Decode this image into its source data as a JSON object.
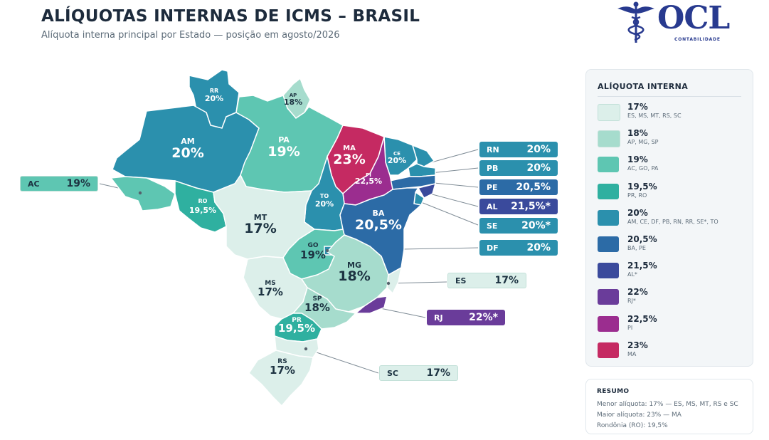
{
  "header": {
    "title": "ALÍQUOTAS INTERNAS DE ICMS – BRASIL",
    "subtitle": "Alíquota interna principal por Estado — posição em agosto/2026"
  },
  "logo": {
    "brand": "OCL",
    "tagline": "CONTABILIDADE",
    "emblem": "caduceus-icon",
    "color": "#283a8f"
  },
  "colors": {
    "r17": "#dcefea",
    "r18": "#a6dccd",
    "r19": "#5ec6b2",
    "r195": "#2fb0a0",
    "r20": "#2b90ad",
    "r205": "#2c6ba6",
    "r215": "#3a4a9c",
    "r22": "#6a3c9a",
    "r225": "#9b2d8f",
    "r23": "#c52a62"
  },
  "map": {
    "states": [
      {
        "uf": "RR",
        "rate": "20%"
      },
      {
        "uf": "AP",
        "rate": "18%"
      },
      {
        "uf": "AM",
        "rate": "20%"
      },
      {
        "uf": "PA",
        "rate": "19%"
      },
      {
        "uf": "MA",
        "rate": "23%"
      },
      {
        "uf": "CE",
        "rate": "20%"
      },
      {
        "uf": "PI",
        "rate": "22,5%"
      },
      {
        "uf": "AC",
        "rate": ""
      },
      {
        "uf": "RO",
        "rate": "19,5%"
      },
      {
        "uf": "TO",
        "rate": "20%"
      },
      {
        "uf": "BA",
        "rate": "20,5%"
      },
      {
        "uf": "MT",
        "rate": "17%"
      },
      {
        "uf": "GO",
        "rate": "19%"
      },
      {
        "uf": "MG",
        "rate": "18%"
      },
      {
        "uf": "MS",
        "rate": "17%"
      },
      {
        "uf": "SP",
        "rate": "18%"
      },
      {
        "uf": "PR",
        "rate": "19,5%"
      },
      {
        "uf": "RS",
        "rate": "17%"
      }
    ]
  },
  "callouts": [
    {
      "uf": "RN",
      "rate": "20%"
    },
    {
      "uf": "PB",
      "rate": "20%"
    },
    {
      "uf": "PE",
      "rate": "20,5%"
    },
    {
      "uf": "AL",
      "rate": "21,5%*"
    },
    {
      "uf": "SE",
      "rate": "20%*"
    },
    {
      "uf": "DF",
      "rate": "20%"
    },
    {
      "uf": "AC",
      "rate": "19%"
    },
    {
      "uf": "ES",
      "rate": "17%"
    },
    {
      "uf": "RJ",
      "rate": "22%*"
    },
    {
      "uf": "SC",
      "rate": "17%"
    }
  ],
  "legend": {
    "title": "ALÍQUOTA INTERNA",
    "items": [
      {
        "pct": "17%",
        "states": "ES, MS, MT, RS, SC"
      },
      {
        "pct": "18%",
        "states": "AP, MG, SP"
      },
      {
        "pct": "19%",
        "states": "AC, GO, PA"
      },
      {
        "pct": "19,5%",
        "states": "PR, RO"
      },
      {
        "pct": "20%",
        "states": "AM, CE, DF, PB, RN, RR, SE*, TO"
      },
      {
        "pct": "20,5%",
        "states": "BA, PE"
      },
      {
        "pct": "21,5%",
        "states": "AL*"
      },
      {
        "pct": "22%",
        "states": "RJ*"
      },
      {
        "pct": "22,5%",
        "states": "PI"
      },
      {
        "pct": "23%",
        "states": "MA"
      }
    ]
  },
  "summary": {
    "title": "RESUMO",
    "lines": [
      "Menor alíquota: 17% — ES, MS, MT, RS e SC",
      "Maior alíquota: 23% — MA",
      "Rondônia (RO): 19,5%"
    ]
  }
}
